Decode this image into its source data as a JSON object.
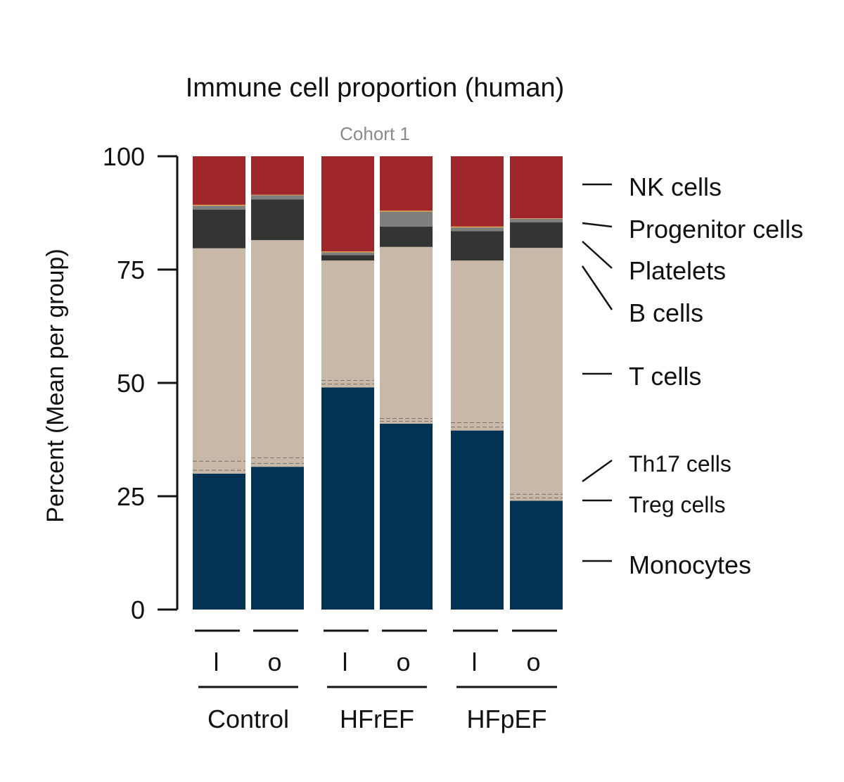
{
  "chart_data": {
    "type": "bar",
    "stacked": true,
    "title": "Immune cell proportion (human)",
    "subtitle": "Cohort 1",
    "xlabel": "",
    "ylabel": "Percent (Mean per group)",
    "ylim": [
      0,
      100
    ],
    "yticks": [
      "0",
      "25",
      "50",
      "75",
      "100"
    ],
    "groups": [
      {
        "label": "Control",
        "bars": [
          "l",
          "o"
        ]
      },
      {
        "label": "HFrEF",
        "bars": [
          "l",
          "o"
        ]
      },
      {
        "label": "HFpEF",
        "bars": [
          "l",
          "o"
        ]
      }
    ],
    "categories": [
      "l",
      "o",
      "l",
      "o",
      "l",
      "o"
    ],
    "series": [
      {
        "name": "Monocytes",
        "color": "#033354",
        "values": [
          30,
          31.5,
          49,
          41,
          39.5,
          24
        ]
      },
      {
        "name": "Treg cells",
        "color": "#c8b8a8",
        "values": [
          0.8,
          0.8,
          0.8,
          0.6,
          0.8,
          0.7
        ],
        "dashed": true
      },
      {
        "name": "Th17 cells",
        "color": "#c8b8a8",
        "values": [
          2.0,
          1.2,
          0.8,
          0.6,
          1.0,
          0.8
        ],
        "dashed": true
      },
      {
        "name": "T cells",
        "color": "#c8b8a8",
        "values": [
          46.9,
          48,
          26.4,
          37.8,
          35.7,
          54.3
        ]
      },
      {
        "name": "B cells",
        "color": "#333533",
        "values": [
          8.5,
          9,
          1.2,
          4.5,
          6.5,
          5.6
        ]
      },
      {
        "name": "Platelets",
        "color": "#7d7f7d",
        "values": [
          0.9,
          0.9,
          0.6,
          3.3,
          0.8,
          0.8
        ]
      },
      {
        "name": "Progenitor cells",
        "color": "#e8a33a",
        "values": [
          0.2,
          0.1,
          0.2,
          0.2,
          0.2,
          0.1
        ]
      },
      {
        "name": "NK cells",
        "color": "#9f262b",
        "values": [
          10.7,
          8.5,
          21,
          12,
          15.5,
          13.7
        ]
      }
    ],
    "legend_position": "right"
  }
}
